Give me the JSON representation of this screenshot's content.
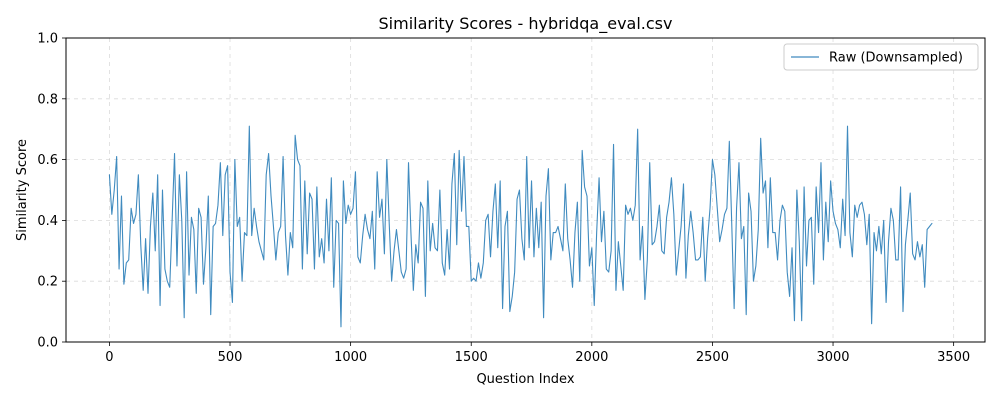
{
  "chart_data": {
    "type": "line",
    "title": "Similarity Scores - hybridqa_eval.csv",
    "xlabel": "Question Index",
    "ylabel": "Similarity Score",
    "xlim": [
      -180,
      3630
    ],
    "ylim": [
      0.0,
      1.0
    ],
    "xticks": [
      0,
      500,
      1000,
      1500,
      2000,
      2500,
      3000,
      3500
    ],
    "yticks": [
      0.0,
      0.2,
      0.4,
      0.6,
      0.8,
      1.0
    ],
    "xtick_labels": [
      "0",
      "500",
      "1000",
      "1500",
      "2000",
      "2500",
      "3000",
      "3500"
    ],
    "ytick_labels": [
      "0.0",
      "0.2",
      "0.4",
      "0.6",
      "0.8",
      "1.0"
    ],
    "grid": true,
    "legend_position": "top-right",
    "series": [
      {
        "name": "Raw (Downsampled)",
        "color": "#1f77b4",
        "x_start": 0,
        "x_step": 10,
        "values": [
          0.55,
          0.42,
          0.5,
          0.61,
          0.24,
          0.48,
          0.19,
          0.26,
          0.27,
          0.44,
          0.39,
          0.42,
          0.55,
          0.32,
          0.17,
          0.34,
          0.16,
          0.38,
          0.49,
          0.3,
          0.55,
          0.12,
          0.5,
          0.24,
          0.2,
          0.18,
          0.4,
          0.62,
          0.25,
          0.55,
          0.4,
          0.08,
          0.56,
          0.22,
          0.41,
          0.37,
          0.16,
          0.44,
          0.41,
          0.19,
          0.31,
          0.48,
          0.09,
          0.38,
          0.39,
          0.45,
          0.59,
          0.35,
          0.55,
          0.58,
          0.23,
          0.13,
          0.6,
          0.38,
          0.41,
          0.2,
          0.36,
          0.35,
          0.71,
          0.35,
          0.44,
          0.38,
          0.33,
          0.3,
          0.27,
          0.55,
          0.62,
          0.48,
          0.38,
          0.27,
          0.36,
          0.38,
          0.61,
          0.35,
          0.22,
          0.36,
          0.31,
          0.68,
          0.6,
          0.58,
          0.24,
          0.53,
          0.29,
          0.49,
          0.47,
          0.24,
          0.51,
          0.28,
          0.34,
          0.26,
          0.47,
          0.3,
          0.54,
          0.18,
          0.4,
          0.39,
          0.05,
          0.53,
          0.39,
          0.45,
          0.42,
          0.44,
          0.56,
          0.28,
          0.26,
          0.35,
          0.42,
          0.37,
          0.34,
          0.43,
          0.24,
          0.56,
          0.41,
          0.47,
          0.29,
          0.6,
          0.39,
          0.2,
          0.3,
          0.37,
          0.3,
          0.23,
          0.21,
          0.24,
          0.59,
          0.36,
          0.17,
          0.32,
          0.26,
          0.46,
          0.44,
          0.15,
          0.53,
          0.3,
          0.39,
          0.31,
          0.3,
          0.5,
          0.26,
          0.22,
          0.37,
          0.24,
          0.52,
          0.62,
          0.32,
          0.63,
          0.43,
          0.61,
          0.38,
          0.38,
          0.2,
          0.21,
          0.2,
          0.26,
          0.21,
          0.26,
          0.4,
          0.42,
          0.28,
          0.43,
          0.52,
          0.31,
          0.53,
          0.11,
          0.38,
          0.43,
          0.1,
          0.15,
          0.23,
          0.47,
          0.5,
          0.34,
          0.27,
          0.61,
          0.31,
          0.53,
          0.28,
          0.44,
          0.31,
          0.46,
          0.08,
          0.48,
          0.57,
          0.27,
          0.36,
          0.36,
          0.38,
          0.34,
          0.3,
          0.52,
          0.34,
          0.27,
          0.18,
          0.36,
          0.46,
          0.2,
          0.63,
          0.51,
          0.48,
          0.25,
          0.31,
          0.12,
          0.36,
          0.54,
          0.33,
          0.43,
          0.24,
          0.23,
          0.3,
          0.65,
          0.17,
          0.33,
          0.25,
          0.17,
          0.45,
          0.42,
          0.44,
          0.4,
          0.45,
          0.7,
          0.27,
          0.38,
          0.14,
          0.27,
          0.59,
          0.32,
          0.33,
          0.38,
          0.45,
          0.3,
          0.29,
          0.41,
          0.46,
          0.54,
          0.42,
          0.22,
          0.3,
          0.38,
          0.52,
          0.21,
          0.35,
          0.43,
          0.36,
          0.27,
          0.27,
          0.28,
          0.41,
          0.2,
          0.34,
          0.44,
          0.6,
          0.55,
          0.44,
          0.33,
          0.37,
          0.42,
          0.44,
          0.66,
          0.39,
          0.11,
          0.44,
          0.59,
          0.34,
          0.38,
          0.09,
          0.49,
          0.43,
          0.2,
          0.25,
          0.37,
          0.67,
          0.49,
          0.53,
          0.31,
          0.54,
          0.36,
          0.36,
          0.27,
          0.4,
          0.45,
          0.43,
          0.23,
          0.15,
          0.31,
          0.07,
          0.5,
          0.33,
          0.07,
          0.51,
          0.25,
          0.4,
          0.41,
          0.19,
          0.51,
          0.36,
          0.59,
          0.27,
          0.46,
          0.33,
          0.53,
          0.43,
          0.39,
          0.37,
          0.31,
          0.47,
          0.35,
          0.71,
          0.36,
          0.28,
          0.45,
          0.41,
          0.45,
          0.46,
          0.42,
          0.32,
          0.42,
          0.06,
          0.36,
          0.3,
          0.38,
          0.29,
          0.4,
          0.13,
          0.33,
          0.44,
          0.4,
          0.27,
          0.27,
          0.51,
          0.1,
          0.32,
          0.4,
          0.49,
          0.29,
          0.27,
          0.33,
          0.28,
          0.32,
          0.18,
          0.37,
          0.38,
          0.39
        ]
      }
    ]
  }
}
